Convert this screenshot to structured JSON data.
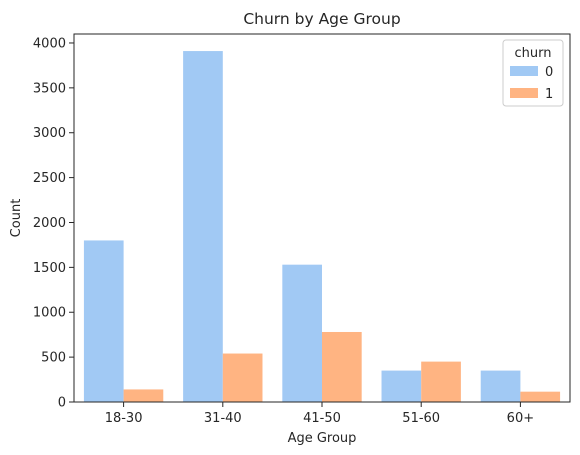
{
  "chart_data": {
    "type": "bar",
    "title": "Churn by Age Group",
    "xlabel": "Age Group",
    "ylabel": "Count",
    "categories": [
      "18-30",
      "31-40",
      "41-50",
      "51-60",
      "60+"
    ],
    "series": [
      {
        "name": "0",
        "values": [
          1800,
          3910,
          1530,
          350,
          350
        ],
        "color": "#a1c9f4"
      },
      {
        "name": "1",
        "values": [
          140,
          540,
          780,
          450,
          115
        ],
        "color": "#ffb482"
      }
    ],
    "ylim": [
      0,
      4100
    ],
    "yticks": [
      0,
      500,
      1000,
      1500,
      2000,
      2500,
      3000,
      3500,
      4000
    ],
    "legend": {
      "title": "churn",
      "position": "top-right"
    },
    "grid": false
  }
}
